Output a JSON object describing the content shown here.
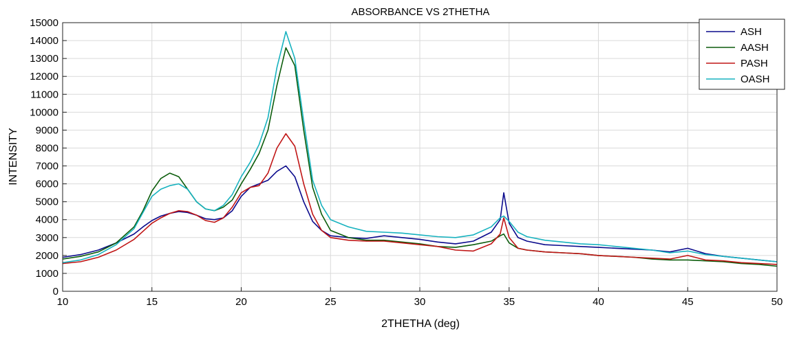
{
  "chart_data": {
    "type": "line",
    "title": "ABSORBANCE VS 2THETHA",
    "xlabel": "2THETHA (deg)",
    "ylabel": "INTENSITY",
    "xlim": [
      10,
      50
    ],
    "ylim": [
      0,
      15000
    ],
    "xticks": [
      10,
      15,
      20,
      25,
      30,
      35,
      40,
      45,
      50
    ],
    "yticks": [
      0,
      1000,
      2000,
      3000,
      4000,
      5000,
      6000,
      7000,
      8000,
      9000,
      10000,
      11000,
      12000,
      13000,
      14000,
      15000
    ],
    "grid": true,
    "legend_position": "top-right",
    "x": [
      10,
      11,
      12,
      13,
      14,
      14.5,
      15,
      15.5,
      16,
      16.5,
      17,
      17.5,
      18,
      18.5,
      19,
      19.5,
      20,
      20.5,
      21,
      21.5,
      22,
      22.5,
      23,
      23.5,
      24,
      24.5,
      25,
      26,
      27,
      28,
      29,
      30,
      31,
      32,
      33,
      34,
      34.5,
      34.7,
      35,
      35.5,
      36,
      37,
      38,
      39,
      40,
      41,
      42,
      43,
      44,
      45,
      46,
      47,
      48,
      49,
      50
    ],
    "series": [
      {
        "name": "ASH",
        "color": "#0a0a8c",
        "values": [
          1900,
          2050,
          2300,
          2700,
          3200,
          3600,
          3950,
          4200,
          4350,
          4450,
          4400,
          4250,
          4050,
          4000,
          4100,
          4500,
          5300,
          5800,
          6000,
          6200,
          6700,
          7000,
          6400,
          5000,
          3900,
          3400,
          3100,
          3000,
          2950,
          3100,
          3000,
          2900,
          2750,
          2650,
          2800,
          3300,
          4000,
          5500,
          3800,
          3000,
          2800,
          2600,
          2550,
          2500,
          2450,
          2400,
          2350,
          2300,
          2200,
          2400,
          2100,
          1950,
          1850,
          1750,
          1650
        ]
      },
      {
        "name": "AASH",
        "color": "#0b5c0b",
        "values": [
          1800,
          1950,
          2200,
          2700,
          3600,
          4500,
          5600,
          6300,
          6600,
          6400,
          5700,
          5000,
          4600,
          4500,
          4700,
          5100,
          6000,
          6800,
          7700,
          9000,
          11500,
          13600,
          12600,
          9000,
          5800,
          4300,
          3400,
          3000,
          2850,
          2850,
          2750,
          2650,
          2500,
          2450,
          2600,
          2800,
          3100,
          3200,
          2700,
          2400,
          2300,
          2200,
          2150,
          2100,
          2000,
          1950,
          1900,
          1800,
          1750,
          1750,
          1700,
          1650,
          1550,
          1500,
          1400
        ]
      },
      {
        "name": "PASH",
        "color": "#c01515",
        "values": [
          1550,
          1650,
          1900,
          2300,
          2900,
          3350,
          3800,
          4100,
          4350,
          4500,
          4450,
          4250,
          3950,
          3850,
          4100,
          4700,
          5500,
          5800,
          5900,
          6600,
          8000,
          8800,
          8100,
          6000,
          4300,
          3400,
          3000,
          2850,
          2800,
          2800,
          2700,
          2600,
          2500,
          2300,
          2250,
          2650,
          3200,
          4100,
          3000,
          2400,
          2300,
          2200,
          2150,
          2100,
          2000,
          1950,
          1900,
          1850,
          1800,
          2000,
          1750,
          1700,
          1600,
          1550,
          1500
        ]
      },
      {
        "name": "OASH",
        "color": "#17b2bf",
        "values": [
          1600,
          1750,
          2050,
          2600,
          3500,
          4400,
          5300,
          5700,
          5900,
          6000,
          5700,
          5000,
          4600,
          4500,
          4800,
          5400,
          6400,
          7200,
          8200,
          9700,
          12500,
          14500,
          13000,
          9500,
          6200,
          4800,
          4000,
          3600,
          3350,
          3300,
          3250,
          3150,
          3050,
          3000,
          3150,
          3600,
          4100,
          4200,
          3900,
          3300,
          3050,
          2850,
          2750,
          2650,
          2600,
          2500,
          2400,
          2300,
          2150,
          2250,
          2050,
          1950,
          1850,
          1750,
          1650
        ]
      }
    ]
  }
}
